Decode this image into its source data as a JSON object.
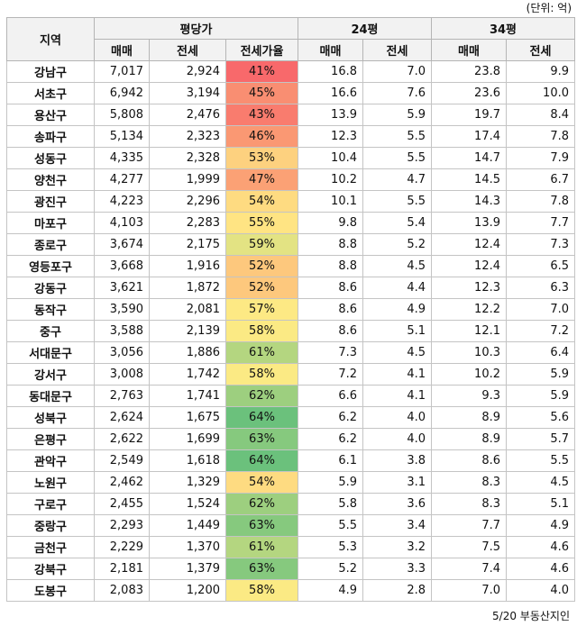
{
  "unit_note": "(단위: 억)",
  "source": "5/20 부동산지인",
  "headers": {
    "region": "지역",
    "group_pyeong": "평당가",
    "group_24": "24평",
    "group_34": "34평",
    "sub": [
      "매매",
      "전세",
      "전세가율",
      "매매",
      "전세",
      "매매",
      "전세"
    ]
  },
  "ratio_colors": {
    "41%": "#f8696b",
    "43%": "#f97c6e",
    "45%": "#f98e72",
    "46%": "#fa9873",
    "47%": "#fba175",
    "52%": "#fdc87d",
    "53%": "#fdd17f",
    "54%": "#fedb81",
    "55%": "#ffe483",
    "57%": "#fde984",
    "58%": "#fbea84",
    "59%": "#e3e383",
    "61%": "#b4d680",
    "62%": "#9dcf7f",
    "63%": "#86c97e",
    "64%": "#6bc17c"
  },
  "rows": [
    {
      "region": "강남구",
      "p_sale": "7,017",
      "p_jeonse": "2,924",
      "ratio": "41%",
      "s24": "16.8",
      "j24": "7.0",
      "s34": "23.8",
      "j34": "9.9"
    },
    {
      "region": "서초구",
      "p_sale": "6,942",
      "p_jeonse": "3,194",
      "ratio": "45%",
      "s24": "16.6",
      "j24": "7.6",
      "s34": "23.6",
      "j34": "10.0"
    },
    {
      "region": "용산구",
      "p_sale": "5,808",
      "p_jeonse": "2,476",
      "ratio": "43%",
      "s24": "13.9",
      "j24": "5.9",
      "s34": "19.7",
      "j34": "8.4"
    },
    {
      "region": "송파구",
      "p_sale": "5,134",
      "p_jeonse": "2,323",
      "ratio": "46%",
      "s24": "12.3",
      "j24": "5.5",
      "s34": "17.4",
      "j34": "7.8"
    },
    {
      "region": "성동구",
      "p_sale": "4,335",
      "p_jeonse": "2,328",
      "ratio": "53%",
      "s24": "10.4",
      "j24": "5.5",
      "s34": "14.7",
      "j34": "7.9"
    },
    {
      "region": "양천구",
      "p_sale": "4,277",
      "p_jeonse": "1,999",
      "ratio": "47%",
      "s24": "10.2",
      "j24": "4.7",
      "s34": "14.5",
      "j34": "6.7"
    },
    {
      "region": "광진구",
      "p_sale": "4,223",
      "p_jeonse": "2,296",
      "ratio": "54%",
      "s24": "10.1",
      "j24": "5.5",
      "s34": "14.3",
      "j34": "7.8"
    },
    {
      "region": "마포구",
      "p_sale": "4,103",
      "p_jeonse": "2,283",
      "ratio": "55%",
      "s24": "9.8",
      "j24": "5.4",
      "s34": "13.9",
      "j34": "7.7"
    },
    {
      "region": "종로구",
      "p_sale": "3,674",
      "p_jeonse": "2,175",
      "ratio": "59%",
      "s24": "8.8",
      "j24": "5.2",
      "s34": "12.4",
      "j34": "7.3"
    },
    {
      "region": "영등포구",
      "p_sale": "3,668",
      "p_jeonse": "1,916",
      "ratio": "52%",
      "s24": "8.8",
      "j24": "4.5",
      "s34": "12.4",
      "j34": "6.5"
    },
    {
      "region": "강동구",
      "p_sale": "3,621",
      "p_jeonse": "1,872",
      "ratio": "52%",
      "s24": "8.6",
      "j24": "4.4",
      "s34": "12.3",
      "j34": "6.3"
    },
    {
      "region": "동작구",
      "p_sale": "3,590",
      "p_jeonse": "2,081",
      "ratio": "57%",
      "s24": "8.6",
      "j24": "4.9",
      "s34": "12.2",
      "j34": "7.0"
    },
    {
      "region": "중구",
      "p_sale": "3,588",
      "p_jeonse": "2,139",
      "ratio": "58%",
      "s24": "8.6",
      "j24": "5.1",
      "s34": "12.1",
      "j34": "7.2"
    },
    {
      "region": "서대문구",
      "p_sale": "3,056",
      "p_jeonse": "1,886",
      "ratio": "61%",
      "s24": "7.3",
      "j24": "4.5",
      "s34": "10.3",
      "j34": "6.4"
    },
    {
      "region": "강서구",
      "p_sale": "3,008",
      "p_jeonse": "1,742",
      "ratio": "58%",
      "s24": "7.2",
      "j24": "4.1",
      "s34": "10.2",
      "j34": "5.9"
    },
    {
      "region": "동대문구",
      "p_sale": "2,763",
      "p_jeonse": "1,741",
      "ratio": "62%",
      "s24": "6.6",
      "j24": "4.1",
      "s34": "9.3",
      "j34": "5.9"
    },
    {
      "region": "성북구",
      "p_sale": "2,624",
      "p_jeonse": "1,675",
      "ratio": "64%",
      "s24": "6.2",
      "j24": "4.0",
      "s34": "8.9",
      "j34": "5.6"
    },
    {
      "region": "은평구",
      "p_sale": "2,622",
      "p_jeonse": "1,699",
      "ratio": "63%",
      "s24": "6.2",
      "j24": "4.0",
      "s34": "8.9",
      "j34": "5.7"
    },
    {
      "region": "관악구",
      "p_sale": "2,549",
      "p_jeonse": "1,618",
      "ratio": "64%",
      "s24": "6.1",
      "j24": "3.8",
      "s34": "8.6",
      "j34": "5.5"
    },
    {
      "region": "노원구",
      "p_sale": "2,462",
      "p_jeonse": "1,329",
      "ratio": "54%",
      "s24": "5.9",
      "j24": "3.1",
      "s34": "8.3",
      "j34": "4.5"
    },
    {
      "region": "구로구",
      "p_sale": "2,455",
      "p_jeonse": "1,524",
      "ratio": "62%",
      "s24": "5.8",
      "j24": "3.6",
      "s34": "8.3",
      "j34": "5.1"
    },
    {
      "region": "중랑구",
      "p_sale": "2,293",
      "p_jeonse": "1,449",
      "ratio": "63%",
      "s24": "5.5",
      "j24": "3.4",
      "s34": "7.7",
      "j34": "4.9"
    },
    {
      "region": "금천구",
      "p_sale": "2,229",
      "p_jeonse": "1,370",
      "ratio": "61%",
      "s24": "5.3",
      "j24": "3.2",
      "s34": "7.5",
      "j34": "4.6"
    },
    {
      "region": "강북구",
      "p_sale": "2,181",
      "p_jeonse": "1,379",
      "ratio": "63%",
      "s24": "5.2",
      "j24": "3.3",
      "s34": "7.4",
      "j34": "4.6"
    },
    {
      "region": "도봉구",
      "p_sale": "2,083",
      "p_jeonse": "1,200",
      "ratio": "58%",
      "s24": "4.9",
      "j24": "2.8",
      "s34": "7.0",
      "j34": "4.0"
    }
  ]
}
